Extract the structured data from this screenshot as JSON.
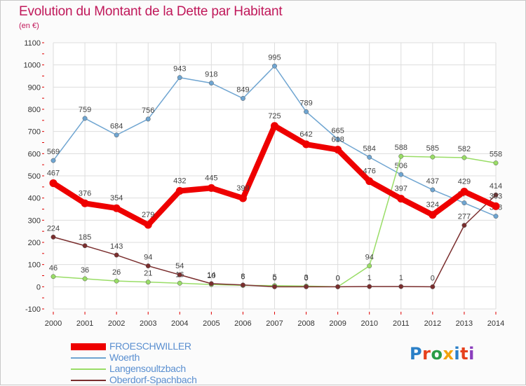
{
  "header": {
    "title": "Evolution du Montant de la Dette par Habitant",
    "subtitle": "(en €)"
  },
  "colors": {
    "title": "#c0185a",
    "grid": "#dddddd",
    "axis_ticks": "#e00000"
  },
  "logo": {
    "text": "Proxiti",
    "letter_colors": [
      "#2a7fc7",
      "#e6401c",
      "#2a9c46",
      "#f2a20c",
      "#2a7fc7",
      "#e6401c",
      "#8a3dbd"
    ]
  },
  "chart_data": {
    "type": "line",
    "title": "Evolution du Montant de la Dette par Habitant",
    "subtitle": "(en €)",
    "xlabel": "",
    "ylabel": "",
    "x": [
      "2000",
      "2001",
      "2002",
      "2003",
      "2004",
      "2005",
      "2006",
      "2007",
      "2008",
      "2009",
      "2010",
      "2011",
      "2012",
      "2013",
      "2014"
    ],
    "ylim": [
      -100,
      1100
    ],
    "yticks": [
      -100,
      0,
      100,
      200,
      300,
      400,
      500,
      600,
      700,
      800,
      900,
      1000,
      1100
    ],
    "grid": true,
    "legend_position": "bottom-left",
    "series": [
      {
        "name": "FROESCHWILLER",
        "color": "#ee0000",
        "values": [
          467,
          376,
          354,
          279,
          432,
          445,
          399,
          725,
          642,
          618,
          476,
          397,
          324,
          429,
          363
        ],
        "labels": [
          "467",
          "376",
          "354",
          "279",
          "432",
          "445",
          "399",
          "725",
          "642",
          "618",
          "476",
          "397",
          "324",
          "429",
          "363"
        ]
      },
      {
        "name": "Woerth",
        "color": "#6fa5d1",
        "values": [
          569,
          759,
          684,
          756,
          943,
          918,
          849,
          995,
          789,
          665,
          584,
          506,
          437,
          378,
          318
        ],
        "labels": [
          "569",
          "759",
          "684",
          "756",
          "943",
          "918",
          "849",
          "995",
          "789",
          "665",
          "584",
          "506",
          "437",
          "378",
          "318"
        ]
      },
      {
        "name": "Langensoultzbach",
        "color": "#99dd66",
        "values": [
          46,
          36,
          26,
          21,
          16,
          10,
          6,
          5,
          3,
          0,
          94,
          588,
          585,
          582,
          558
        ],
        "labels": [
          "46",
          "36",
          "26",
          "21",
          "16",
          "10",
          "6",
          "5",
          "3",
          "0",
          "94",
          "588",
          "585",
          "582",
          "558"
        ]
      },
      {
        "name": "Oberdorf-Spachbach",
        "color": "#7a2e2e",
        "values": [
          224,
          185,
          143,
          94,
          54,
          14,
          8,
          0,
          0,
          0,
          1,
          1,
          0,
          277,
          414
        ],
        "labels": [
          "224",
          "185",
          "143",
          "94",
          "54",
          "14",
          "8",
          "0",
          "0",
          "0",
          "1",
          "1",
          "0",
          "277",
          "414"
        ]
      }
    ]
  }
}
